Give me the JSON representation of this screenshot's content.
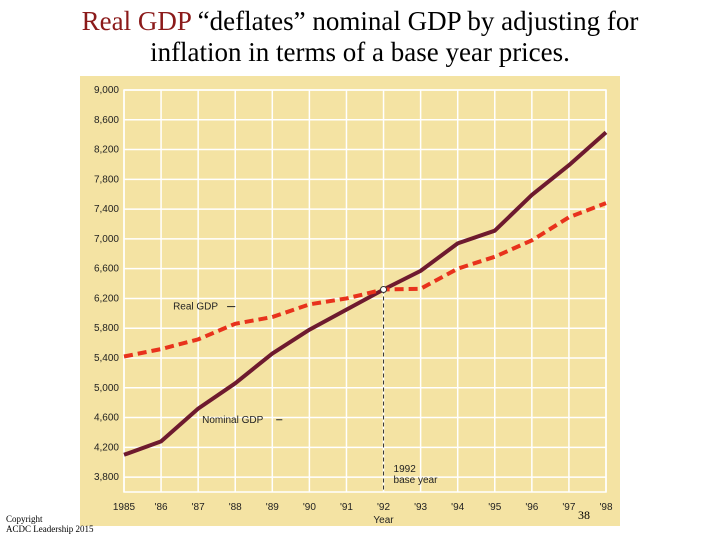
{
  "slide": {
    "title_highlight": "Real GDP",
    "title_rest_line1": " “deflates” nominal GDP by adjusting for",
    "title_line2": "inflation in terms of a base year prices.",
    "footer_line1": "Copyright",
    "footer_line2": "ACDC Leadership 2015",
    "page_number": "38"
  },
  "chart_data": {
    "type": "line",
    "x": [
      "1985",
      "'86",
      "'87",
      "'88",
      "'89",
      "'90",
      "'91",
      "'92",
      "'93",
      "'94",
      "'95",
      "'96",
      "'97",
      "'98"
    ],
    "xlabel": "Year",
    "ylim": [
      3600,
      9000
    ],
    "yticks": [
      "3,800",
      "4,200",
      "4,600",
      "5,000",
      "5,400",
      "5,800",
      "6,200",
      "6,600",
      "7,000",
      "7,400",
      "7,800",
      "8,200",
      "8,600",
      "9,000"
    ],
    "series": [
      {
        "name": "Real GDP",
        "values": [
          5420,
          5520,
          5650,
          5860,
          5950,
          6120,
          6200,
          6320,
          6330,
          6600,
          6760,
          6980,
          7290,
          7480
        ]
      },
      {
        "name": "Nominal GDP",
        "values": [
          4100,
          4280,
          4720,
          5060,
          5460,
          5780,
          6050,
          6320,
          6570,
          6940,
          7110,
          7590,
          7990,
          8430
        ]
      }
    ],
    "annotations": [
      {
        "text_line1": "1992",
        "text_line2": "base year"
      }
    ],
    "colors": {
      "background": "#f4e3a3",
      "grid": "#ffffff",
      "real": "#e8321c",
      "nominal": "#6e1a2e"
    },
    "grid": true
  }
}
